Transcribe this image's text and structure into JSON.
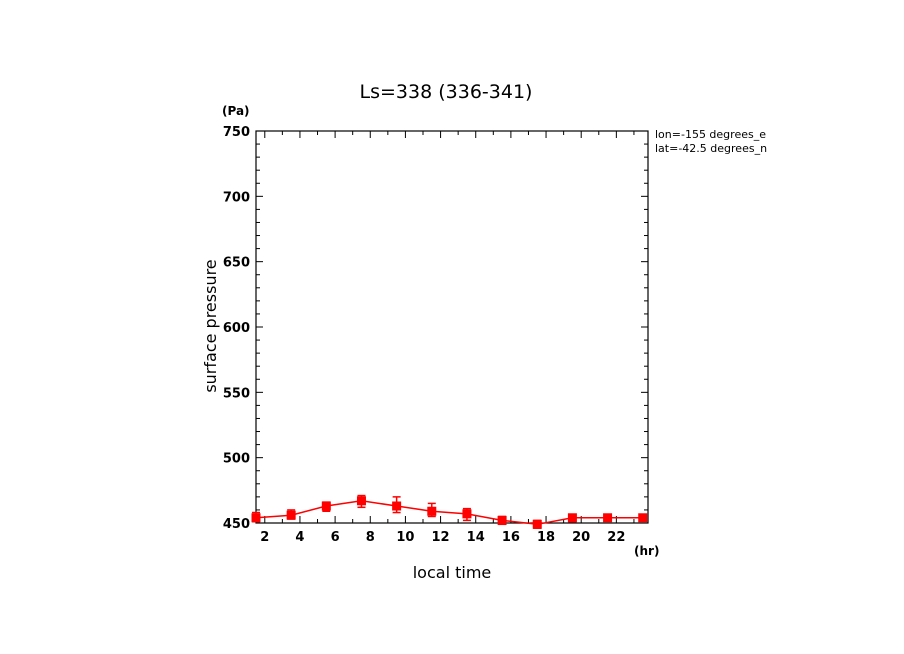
{
  "chart_data": {
    "type": "line",
    "title": "Ls=338 (336-341)",
    "xlabel": "local time",
    "ylabel": "surface pressure",
    "x_unit": "(hr)",
    "y_unit": "(Pa)",
    "xlim": [
      1.5,
      23.8
    ],
    "ylim": [
      450,
      750
    ],
    "x_ticks": [
      2,
      4,
      6,
      8,
      10,
      12,
      14,
      16,
      18,
      20,
      22
    ],
    "y_ticks": [
      450,
      500,
      550,
      600,
      650,
      700,
      750
    ],
    "annotations": [
      "lon=-155 degrees_e",
      "lat=-42.5 degrees_n"
    ],
    "color": "#ff0000",
    "series": [
      {
        "x": [
          1.5,
          3.5,
          5.5,
          7.5,
          9.5,
          11.5,
          13.5,
          15.5,
          17.5,
          19.5,
          21.5,
          23.5
        ],
        "values": [
          454,
          456,
          463,
          467,
          463,
          459,
          457,
          452,
          449,
          454,
          454,
          454
        ],
        "upper": [
          458,
          460,
          466,
          471,
          470,
          465,
          461,
          455,
          452,
          456,
          456,
          456
        ],
        "lower": [
          451,
          453,
          459,
          462,
          458,
          455,
          452,
          449,
          446,
          451,
          452,
          452
        ]
      }
    ]
  }
}
